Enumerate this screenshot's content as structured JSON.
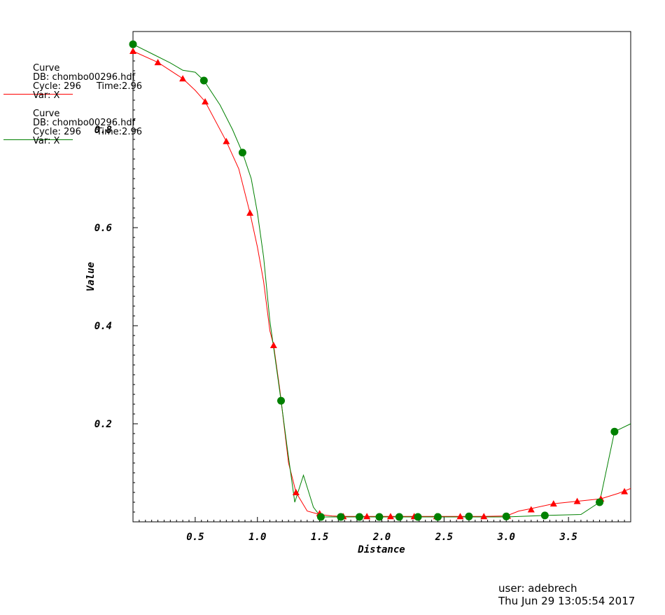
{
  "chart_data": {
    "type": "line",
    "xlabel": "Distance",
    "ylabel": "Value",
    "xlim": [
      0,
      4.0
    ],
    "ylim": [
      0,
      1.0
    ],
    "xticks": [
      "0.5",
      "1.0",
      "1.5",
      "2.0",
      "2.5",
      "3.0",
      "3.5"
    ],
    "yticks": [
      "0.2",
      "0.4",
      "0.6",
      "0.8"
    ],
    "series": [
      {
        "color": "#ff0000",
        "marker": "triangle",
        "line": [
          [
            0,
            0.96
          ],
          [
            0.2,
            0.937
          ],
          [
            0.4,
            0.904
          ],
          [
            0.5,
            0.88
          ],
          [
            0.58,
            0.857
          ],
          [
            0.75,
            0.776
          ],
          [
            0.85,
            0.72
          ],
          [
            0.94,
            0.63
          ],
          [
            1.0,
            0.56
          ],
          [
            1.05,
            0.49
          ],
          [
            1.1,
            0.39
          ],
          [
            1.13,
            0.36
          ],
          [
            1.18,
            0.27
          ],
          [
            1.25,
            0.12
          ],
          [
            1.31,
            0.06
          ],
          [
            1.4,
            0.022
          ],
          [
            1.5,
            0.015
          ],
          [
            1.6,
            0.012
          ],
          [
            1.69,
            0.011
          ],
          [
            2.0,
            0.011
          ],
          [
            2.5,
            0.011
          ],
          [
            2.82,
            0.011
          ],
          [
            3.0,
            0.012
          ],
          [
            3.1,
            0.022
          ],
          [
            3.2,
            0.027
          ],
          [
            3.38,
            0.037
          ],
          [
            3.57,
            0.042
          ],
          [
            3.76,
            0.047
          ],
          [
            3.9,
            0.058
          ],
          [
            4.0,
            0.068
          ]
        ],
        "markers": [
          [
            0,
            0.96
          ],
          [
            0.2,
            0.937
          ],
          [
            0.4,
            0.904
          ],
          [
            0.58,
            0.857
          ],
          [
            0.75,
            0.776
          ],
          [
            0.94,
            0.63
          ],
          [
            1.13,
            0.36
          ],
          [
            1.31,
            0.06
          ],
          [
            1.5,
            0.017
          ],
          [
            1.69,
            0.011
          ],
          [
            1.88,
            0.011
          ],
          [
            2.07,
            0.011
          ],
          [
            2.26,
            0.011
          ],
          [
            2.44,
            0.011
          ],
          [
            2.63,
            0.011
          ],
          [
            2.82,
            0.011
          ],
          [
            3.01,
            0.012
          ],
          [
            3.2,
            0.025
          ],
          [
            3.38,
            0.037
          ],
          [
            3.57,
            0.042
          ],
          [
            3.76,
            0.047
          ],
          [
            3.95,
            0.062
          ]
        ]
      },
      {
        "color": "#008000",
        "marker": "circle",
        "line": [
          [
            0,
            0.974
          ],
          [
            0.15,
            0.955
          ],
          [
            0.3,
            0.936
          ],
          [
            0.4,
            0.921
          ],
          [
            0.5,
            0.917
          ],
          [
            0.57,
            0.9
          ],
          [
            0.7,
            0.85
          ],
          [
            0.8,
            0.8
          ],
          [
            0.88,
            0.753
          ],
          [
            0.95,
            0.7
          ],
          [
            1.0,
            0.63
          ],
          [
            1.05,
            0.54
          ],
          [
            1.1,
            0.41
          ],
          [
            1.15,
            0.32
          ],
          [
            1.19,
            0.247
          ],
          [
            1.24,
            0.15
          ],
          [
            1.3,
            0.04
          ],
          [
            1.37,
            0.095
          ],
          [
            1.45,
            0.03
          ],
          [
            1.51,
            0.01
          ],
          [
            2.0,
            0.01
          ],
          [
            2.5,
            0.01
          ],
          [
            3.0,
            0.01
          ],
          [
            3.31,
            0.013
          ],
          [
            3.6,
            0.015
          ],
          [
            3.75,
            0.04
          ],
          [
            3.87,
            0.184
          ],
          [
            4.0,
            0.2
          ]
        ],
        "markers": [
          [
            0,
            0.974
          ],
          [
            0.57,
            0.9
          ],
          [
            0.88,
            0.753
          ],
          [
            1.19,
            0.247
          ],
          [
            1.51,
            0.01
          ],
          [
            1.67,
            0.01
          ],
          [
            1.82,
            0.01
          ],
          [
            1.98,
            0.01
          ],
          [
            2.14,
            0.01
          ],
          [
            2.29,
            0.01
          ],
          [
            2.45,
            0.01
          ],
          [
            2.7,
            0.011
          ],
          [
            3.0,
            0.011
          ],
          [
            3.31,
            0.013
          ],
          [
            3.75,
            0.04
          ],
          [
            3.87,
            0.184
          ]
        ]
      }
    ]
  },
  "legend": [
    {
      "title": "Curve",
      "db": "DB: chombo00296.hdf",
      "cycle": "Cycle: 296",
      "time": "Time:2.96",
      "var": "Var: X",
      "color": "#ff0000"
    },
    {
      "title": "Curve",
      "db": "DB: chombo00296.hdf",
      "cycle": "Cycle: 296",
      "time": "Time:2.96",
      "var": "Var: X",
      "color": "#008000"
    }
  ],
  "footer": {
    "user": "user: adebrech",
    "datetime": "Thu Jun 29 13:05:54 2017"
  }
}
